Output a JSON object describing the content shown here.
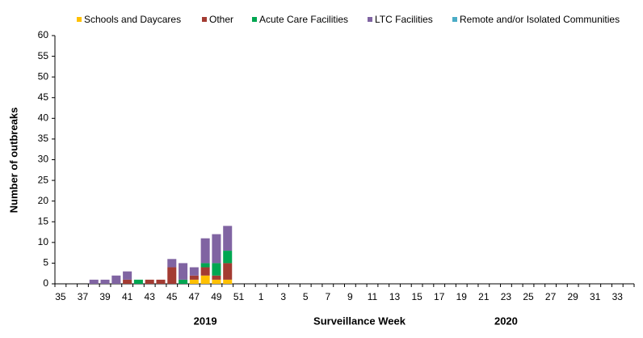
{
  "chart_data": {
    "type": "stacked_bar",
    "y_label": "Number of outbreaks",
    "x_label": "Surveillance Week",
    "year_labels": [
      "2019",
      "2020"
    ],
    "categories": [
      "35",
      null,
      "37",
      null,
      "39",
      null,
      "41",
      null,
      "43",
      null,
      "45",
      null,
      "47",
      null,
      "49",
      null,
      "51",
      null,
      "1",
      null,
      "3",
      null,
      "5",
      null,
      "7",
      null,
      "9",
      null,
      "11",
      null,
      "13",
      null,
      "15",
      null,
      "17",
      null,
      "19",
      null,
      "21",
      null,
      "23",
      null,
      "25",
      null,
      "27",
      null,
      "29",
      null,
      "31",
      null,
      "33",
      null
    ],
    "series": [
      {
        "name": "Schools and Daycares",
        "color": "#ffc000",
        "values": [
          0,
          0,
          0,
          0,
          0,
          0,
          0,
          0,
          0,
          0,
          0,
          0,
          1,
          2,
          1,
          1,
          null,
          null,
          null,
          null,
          null,
          null,
          null,
          null,
          null,
          null,
          null,
          null,
          null,
          null,
          null,
          null,
          null,
          null,
          null,
          null,
          null,
          null,
          null,
          null,
          null,
          null,
          null,
          null,
          null,
          null,
          null,
          null,
          null,
          null,
          null,
          null
        ]
      },
      {
        "name": "Other",
        "color": "#a33b32",
        "values": [
          0,
          0,
          0,
          0,
          0,
          0,
          1,
          0,
          1,
          1,
          4,
          0,
          1,
          2,
          1,
          4,
          null,
          null,
          null,
          null,
          null,
          null,
          null,
          null,
          null,
          null,
          null,
          null,
          null,
          null,
          null,
          null,
          null,
          null,
          null,
          null,
          null,
          null,
          null,
          null,
          null,
          null,
          null,
          null,
          null,
          null,
          null,
          null,
          null,
          null,
          null,
          null
        ]
      },
      {
        "name": "Acute Care Facilities",
        "color": "#00a651",
        "values": [
          0,
          0,
          0,
          0,
          0,
          0,
          0,
          1,
          0,
          0,
          0,
          1,
          0,
          1,
          3,
          3,
          null,
          null,
          null,
          null,
          null,
          null,
          null,
          null,
          null,
          null,
          null,
          null,
          null,
          null,
          null,
          null,
          null,
          null,
          null,
          null,
          null,
          null,
          null,
          null,
          null,
          null,
          null,
          null,
          null,
          null,
          null,
          null,
          null,
          null,
          null,
          null
        ]
      },
      {
        "name": "LTC Facilities",
        "color": "#8064a2",
        "values": [
          0,
          0,
          0,
          1,
          1,
          2,
          2,
          0,
          0,
          0,
          2,
          4,
          2,
          6,
          7,
          6,
          null,
          null,
          null,
          null,
          null,
          null,
          null,
          null,
          null,
          null,
          null,
          null,
          null,
          null,
          null,
          null,
          null,
          null,
          null,
          null,
          null,
          null,
          null,
          null,
          null,
          null,
          null,
          null,
          null,
          null,
          null,
          null,
          null,
          null,
          null,
          null
        ]
      },
      {
        "name": "Remote and/or Isolated Communities",
        "color": "#4bacc6",
        "values": [
          0,
          0,
          0,
          0,
          0,
          0,
          0,
          0,
          0,
          0,
          0,
          0,
          0,
          0,
          0,
          0,
          null,
          null,
          null,
          null,
          null,
          null,
          null,
          null,
          null,
          null,
          null,
          null,
          null,
          null,
          null,
          null,
          null,
          null,
          null,
          null,
          null,
          null,
          null,
          null,
          null,
          null,
          null,
          null,
          null,
          null,
          null,
          null,
          null,
          null,
          null,
          null
        ]
      }
    ],
    "ylim": [
      0,
      60
    ],
    "yticks": [
      0,
      5,
      10,
      15,
      20,
      25,
      30,
      35,
      40,
      45,
      50,
      55,
      60
    ],
    "legend": "top"
  }
}
